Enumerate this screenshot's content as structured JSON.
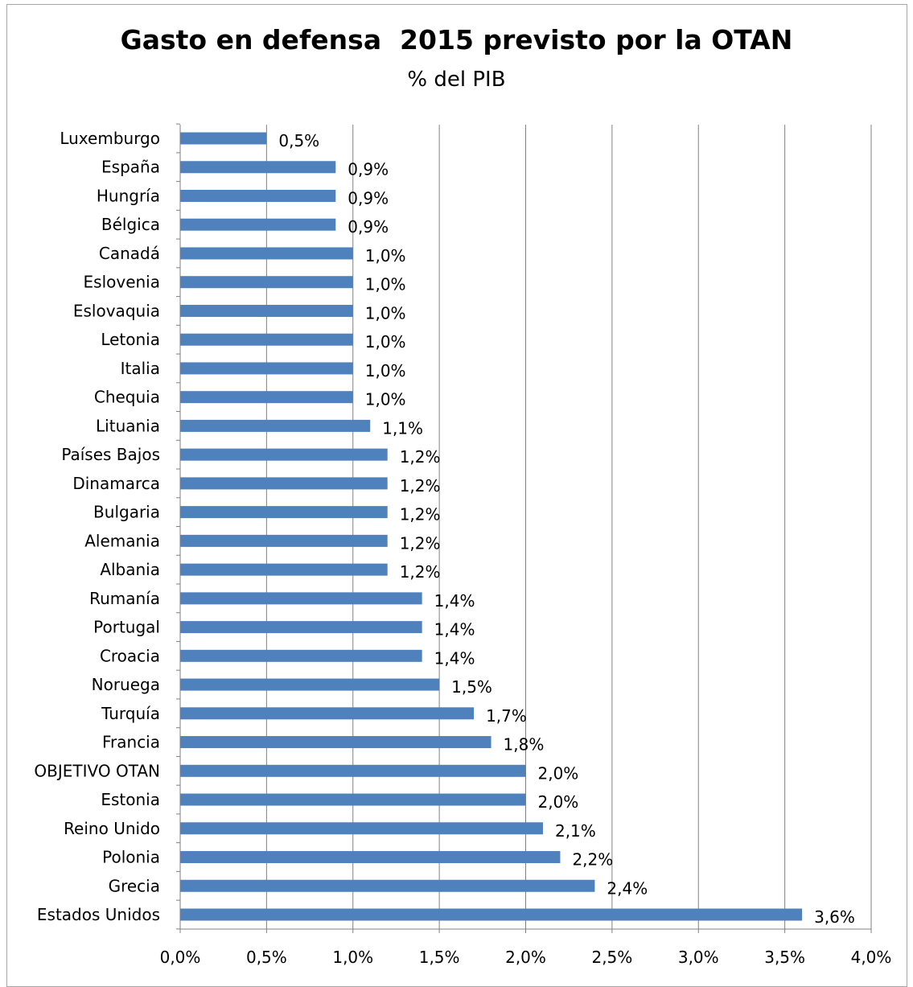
{
  "chart_data": {
    "type": "bar",
    "orientation": "horizontal",
    "title": "Gasto en defensa  2015 previsto por la OTAN",
    "subtitle": "% del PIB",
    "categories": [
      "Luxemburgo",
      "España",
      "Hungría",
      "Bélgica",
      "Canadá",
      "Eslovenia",
      "Eslovaquia",
      "Letonia",
      "Italia",
      "Chequia",
      "Lituania",
      "Países Bajos",
      "Dinamarca",
      "Bulgaria",
      "Alemania",
      "Albania",
      "Rumanía",
      "Portugal",
      "Croacia",
      "Noruega",
      "Turquía",
      "Francia",
      "OBJETIVO OTAN",
      "Estonia",
      "Reino Unido",
      "Polonia",
      "Grecia",
      "Estados Unidos"
    ],
    "values": [
      0.5,
      0.9,
      0.9,
      0.9,
      1.0,
      1.0,
      1.0,
      1.0,
      1.0,
      1.0,
      1.1,
      1.2,
      1.2,
      1.2,
      1.2,
      1.2,
      1.4,
      1.4,
      1.4,
      1.5,
      1.7,
      1.8,
      2.0,
      2.0,
      2.1,
      2.2,
      2.4,
      3.6
    ],
    "data_labels": [
      "0,5%",
      "0,9%",
      "0,9%",
      "0,9%",
      "1,0%",
      "1,0%",
      "1,0%",
      "1,0%",
      "1,0%",
      "1,0%",
      "1,1%",
      "1,2%",
      "1,2%",
      "1,2%",
      "1,2%",
      "1,2%",
      "1,4%",
      "1,4%",
      "1,4%",
      "1,5%",
      "1,7%",
      "1,8%",
      "2,0%",
      "2,0%",
      "2,1%",
      "2,2%",
      "2,4%",
      "3,6%"
    ],
    "x_ticks": [
      0,
      0.5,
      1.0,
      1.5,
      2.0,
      2.5,
      3.0,
      3.5,
      4.0
    ],
    "x_tick_labels": [
      "0,0%",
      "0,5%",
      "1,0%",
      "1,5%",
      "2,0%",
      "2,5%",
      "3,0%",
      "3,5%",
      "4,0%"
    ],
    "xlim": [
      0,
      4.0
    ],
    "xlabel": "",
    "ylabel": "",
    "grid": "vertical",
    "legend": "none",
    "colors": {
      "bar": "#4f81bd",
      "gridline": "#808080",
      "axis": "#808080",
      "frame": "#a6a6a6"
    }
  }
}
